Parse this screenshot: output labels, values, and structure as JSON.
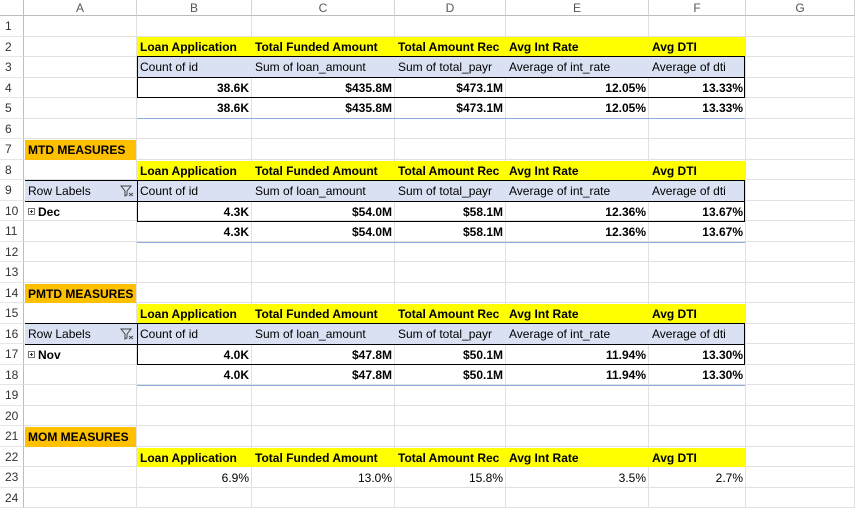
{
  "columns": [
    "A",
    "B",
    "C",
    "D",
    "E",
    "F",
    "G"
  ],
  "rows": [
    "1",
    "2",
    "3",
    "4",
    "5",
    "6",
    "7",
    "8",
    "9",
    "10",
    "11",
    "12",
    "13",
    "14",
    "15",
    "16",
    "17",
    "18",
    "19",
    "20",
    "21",
    "22",
    "23",
    "24"
  ],
  "headers": {
    "loan_app": "Loan Application",
    "funded": "Total Funded Amount",
    "received": "Total Amount Rec",
    "int": "Avg Int Rate",
    "dti": "Avg DTI"
  },
  "subheaders": {
    "count": "Count of id",
    "sum_loan": "Sum of loan_amount",
    "sum_total": "Sum of total_payr",
    "avg_int": "Average of int_rate",
    "avg_dti": "Average of dti"
  },
  "overall": {
    "row4": [
      "38.6K",
      "$435.8M",
      "$473.1M",
      "12.05%",
      "13.33%"
    ],
    "row5": [
      "38.6K",
      "$435.8M",
      "$473.1M",
      "12.05%",
      "13.33%"
    ]
  },
  "mtd": {
    "title": "MTD MEASURES",
    "row_labels": "Row Labels",
    "item": "Dec",
    "row10": [
      "4.3K",
      "$54.0M",
      "$58.1M",
      "12.36%",
      "13.67%"
    ],
    "row11": [
      "4.3K",
      "$54.0M",
      "$58.1M",
      "12.36%",
      "13.67%"
    ]
  },
  "pmtd": {
    "title": "PMTD MEASURES",
    "row_labels": "Row Labels",
    "item": "Nov",
    "row17": [
      "4.0K",
      "$47.8M",
      "$50.1M",
      "11.94%",
      "13.30%"
    ],
    "row18": [
      "4.0K",
      "$47.8M",
      "$50.1M",
      "11.94%",
      "13.30%"
    ]
  },
  "mom": {
    "title": "MOM MEASURES",
    "row23": [
      "6.9%",
      "13.0%",
      "15.8%",
      "3.5%",
      "2.7%"
    ]
  },
  "colors": {
    "yellow": "#ffff00",
    "orange": "#ffc000",
    "lavender": "#d9e1f2"
  }
}
